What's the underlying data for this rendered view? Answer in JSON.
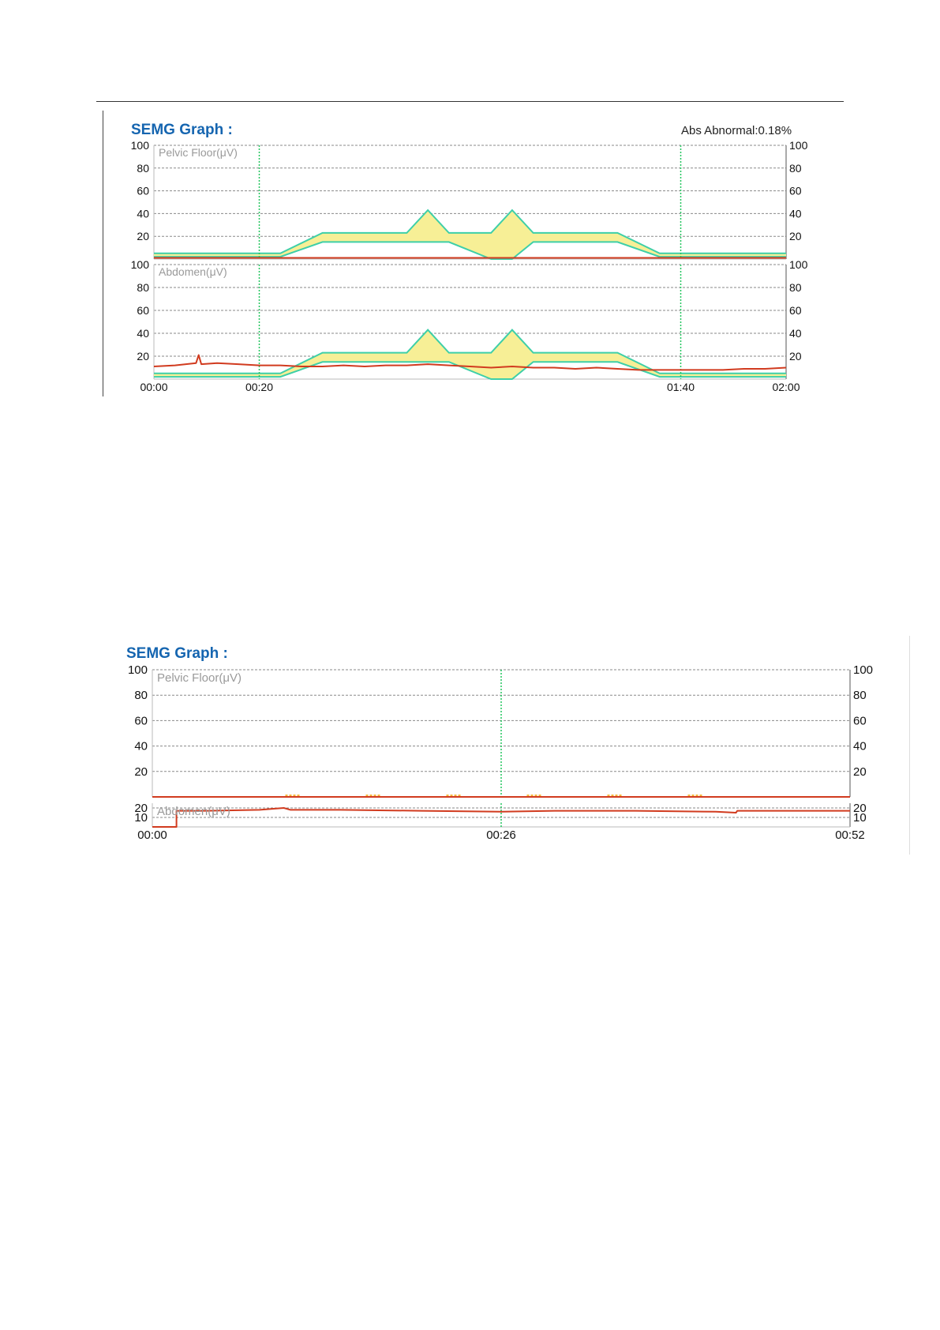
{
  "colors": {
    "title": "#1565b0",
    "signal": "#d13b1f",
    "template_fill": "#f7ef96",
    "template_stroke": "#3ecfa8",
    "marker": "#22c55e",
    "grid": "#8a8a8a",
    "tick_text": "#111111",
    "panel_label": "#9a9a9a",
    "minor_marker": "#f2a300"
  },
  "chart_data": [
    {
      "type": "line",
      "title": "SEMG Graph :",
      "annotation": "Abs Abnormal:0.18%",
      "x_ticks": [
        "00:00",
        "00:20",
        "01:40",
        "02:00"
      ],
      "x_range_seconds": [
        0,
        120
      ],
      "marker_lines_seconds": [
        20,
        100
      ],
      "panels": [
        {
          "name": "Pelvic Floor(μV)",
          "ylim": [
            0,
            100
          ],
          "y_ticks": [
            20,
            40,
            60,
            80,
            100
          ],
          "y_ticks_right": [
            20,
            40,
            60,
            80,
            100
          ],
          "template_upper": [
            [
              0,
              5
            ],
            [
              24,
              5
            ],
            [
              32,
              23
            ],
            [
              48,
              23
            ],
            [
              52,
              43
            ],
            [
              56,
              23
            ],
            [
              64,
              23
            ],
            [
              68,
              43
            ],
            [
              72,
              23
            ],
            [
              88,
              23
            ],
            [
              96,
              5
            ],
            [
              120,
              5
            ]
          ],
          "template_lower": [
            [
              0,
              2
            ],
            [
              24,
              2
            ],
            [
              32,
              15
            ],
            [
              56,
              15
            ],
            [
              64,
              0
            ],
            [
              68,
              0
            ],
            [
              72,
              15
            ],
            [
              88,
              15
            ],
            [
              96,
              2
            ],
            [
              120,
              2
            ]
          ],
          "signal": [
            [
              0,
              1
            ],
            [
              120,
              1
            ]
          ]
        },
        {
          "name": "Abdomen(μV)",
          "ylim": [
            0,
            100
          ],
          "y_ticks": [
            20,
            40,
            60,
            80,
            100
          ],
          "y_ticks_right": [
            20,
            40,
            60,
            80,
            100
          ],
          "template_upper": [
            [
              0,
              5
            ],
            [
              24,
              5
            ],
            [
              32,
              23
            ],
            [
              48,
              23
            ],
            [
              52,
              43
            ],
            [
              56,
              23
            ],
            [
              64,
              23
            ],
            [
              68,
              43
            ],
            [
              72,
              23
            ],
            [
              88,
              23
            ],
            [
              96,
              5
            ],
            [
              120,
              5
            ]
          ],
          "template_lower": [
            [
              0,
              2
            ],
            [
              24,
              2
            ],
            [
              32,
              15
            ],
            [
              56,
              15
            ],
            [
              64,
              0
            ],
            [
              68,
              0
            ],
            [
              72,
              15
            ],
            [
              88,
              15
            ],
            [
              96,
              2
            ],
            [
              120,
              2
            ]
          ],
          "signal": [
            [
              0,
              11
            ],
            [
              4,
              12
            ],
            [
              8,
              14
            ],
            [
              8.5,
              21
            ],
            [
              9,
              13
            ],
            [
              12,
              14
            ],
            [
              16,
              13
            ],
            [
              20,
              12
            ],
            [
              24,
              12
            ],
            [
              28,
              11
            ],
            [
              32,
              11
            ],
            [
              36,
              12
            ],
            [
              40,
              11
            ],
            [
              44,
              12
            ],
            [
              48,
              12
            ],
            [
              52,
              13
            ],
            [
              56,
              12
            ],
            [
              60,
              11
            ],
            [
              64,
              10
            ],
            [
              68,
              11
            ],
            [
              72,
              10
            ],
            [
              76,
              10
            ],
            [
              80,
              9
            ],
            [
              84,
              10
            ],
            [
              88,
              9
            ],
            [
              92,
              8
            ],
            [
              96,
              8
            ],
            [
              100,
              8
            ],
            [
              104,
              8
            ],
            [
              108,
              8
            ],
            [
              112,
              9
            ],
            [
              116,
              9
            ],
            [
              120,
              10
            ]
          ]
        }
      ]
    },
    {
      "type": "line",
      "title": "SEMG Graph :",
      "x_ticks": [
        "00:00",
        "00:26",
        "00:52"
      ],
      "x_range_seconds": [
        0,
        52
      ],
      "marker_lines_seconds": [
        26
      ],
      "panels": [
        {
          "name": "Pelvic Floor(μV)",
          "ylim": [
            0,
            100
          ],
          "y_ticks": [
            20,
            40,
            60,
            80,
            100
          ],
          "y_ticks_right": [
            20,
            40,
            60,
            80,
            100
          ],
          "signal": [
            [
              0,
              0
            ],
            [
              52,
              0
            ]
          ],
          "minor_marks_seconds": [
            10.5,
            16.5,
            22.5,
            28.5,
            34.5,
            40.5
          ]
        },
        {
          "name": "Abdomen(μV)",
          "ylim": [
            0,
            25
          ],
          "y_ticks": [
            10,
            20
          ],
          "y_ticks_right": [
            10,
            20
          ],
          "signal": [
            [
              0,
              0
            ],
            [
              1.8,
              0
            ],
            [
              1.8,
              17
            ],
            [
              4,
              17
            ],
            [
              8,
              18
            ],
            [
              9.8,
              20
            ],
            [
              10.3,
              18
            ],
            [
              14,
              18
            ],
            [
              20,
              17
            ],
            [
              26,
              16
            ],
            [
              30,
              17
            ],
            [
              36,
              17
            ],
            [
              42,
              16
            ],
            [
              43.5,
              15
            ],
            [
              43.6,
              17
            ],
            [
              48,
              17
            ],
            [
              52,
              17
            ]
          ]
        }
      ]
    }
  ]
}
